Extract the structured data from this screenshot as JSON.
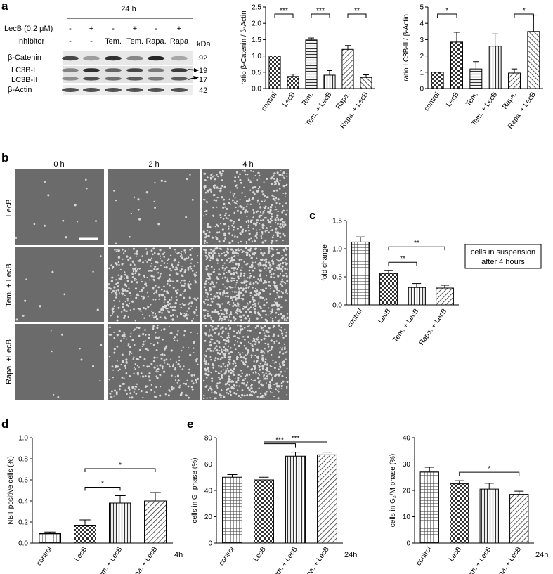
{
  "panels": {
    "a": {
      "letter": "a",
      "blot": {
        "time": "24 h",
        "row_labels": [
          "LecB (0.2 μM)",
          "Inhibitor"
        ],
        "lecb_values": [
          "-",
          "+",
          "-",
          "+",
          "-",
          "+"
        ],
        "inhibitor_values": [
          "-",
          "-",
          "Tem.",
          "Tem.",
          "Rapa.",
          "Rapa"
        ],
        "protein_labels": [
          "β-Catenin",
          "LC3B-I",
          "LC3B-II",
          "β-Actin"
        ],
        "kda_header": "kDa",
        "kda": [
          "92",
          "19",
          "17",
          "42"
        ]
      }
    },
    "b": {
      "letter": "b",
      "columns": [
        "0 h",
        "2 h",
        "4 h"
      ],
      "rows": [
        "LecB",
        "Tem. + LecB",
        "Rapa. +LecB"
      ]
    },
    "c": {
      "letter": "c",
      "box_text": [
        "cells in suspension",
        "after 4 hours"
      ]
    },
    "d": {
      "letter": "d"
    },
    "e": {
      "letter": "e"
    }
  },
  "chart_data": [
    {
      "id": "a1",
      "type": "bar",
      "categories": [
        "control",
        "LecB",
        "Tem.",
        "Tem. + LecB",
        "Rapa.",
        "Rapa. + LecB"
      ],
      "values": [
        1.0,
        0.37,
        1.49,
        0.41,
        1.2,
        0.34
      ],
      "errors": [
        0.0,
        0.07,
        0.06,
        0.14,
        0.12,
        0.08
      ],
      "ylabel": "ratio β-Catenin / β-Actin",
      "ylim": [
        0,
        2.5
      ],
      "yticks": [
        "0.0",
        "0.5",
        "1.0",
        "1.5",
        "2.0",
        "2.5"
      ],
      "sig": [
        {
          "from": 0,
          "to": 1,
          "label": "***"
        },
        {
          "from": 2,
          "to": 3,
          "label": "***"
        },
        {
          "from": 4,
          "to": 5,
          "label": "**"
        }
      ]
    },
    {
      "id": "a2",
      "type": "bar",
      "categories": [
        "control",
        "LecB",
        "Tem.",
        "Tem. + LecB",
        "Rapa.",
        "Rapa. + LecB"
      ],
      "values": [
        1.0,
        2.85,
        1.2,
        2.6,
        0.95,
        3.5
      ],
      "errors": [
        0.0,
        0.6,
        0.45,
        0.75,
        0.25,
        1.0
      ],
      "ylabel": "ratio LC3B-II / β-Actin",
      "ylim": [
        0,
        5
      ],
      "yticks": [
        "0",
        "1",
        "2",
        "3",
        "4",
        "5"
      ],
      "sig": [
        {
          "from": 0,
          "to": 1,
          "label": "*"
        },
        {
          "from": 4,
          "to": 5,
          "label": "*"
        }
      ]
    },
    {
      "id": "c",
      "type": "bar",
      "categories": [
        "control",
        "LecB",
        "Tem. + LecB",
        "Rapa. + LecB"
      ],
      "values": [
        1.12,
        0.56,
        0.31,
        0.3
      ],
      "errors": [
        0.09,
        0.05,
        0.07,
        0.05
      ],
      "ylabel": "fold change",
      "ylim": [
        0,
        1.5
      ],
      "yticks": [
        "0.0",
        "0.5",
        "1.0",
        "1.5"
      ],
      "sig": [
        {
          "from": 1,
          "to": 2,
          "label": "**"
        },
        {
          "from": 1,
          "to": 3,
          "label": "**"
        }
      ]
    },
    {
      "id": "d",
      "type": "bar",
      "categories": [
        "control",
        "LecB",
        "Tem. + LecB",
        "Rapa. + LecB"
      ],
      "values": [
        0.09,
        0.17,
        0.38,
        0.4
      ],
      "errors": [
        0.015,
        0.05,
        0.07,
        0.08
      ],
      "ylabel": "NBT positive cells (%)",
      "ylim": [
        0,
        1.0
      ],
      "yticks": [
        "0.0",
        "0.2",
        "0.4",
        "0.6",
        "0.8",
        "1.0"
      ],
      "sig": [
        {
          "from": 1,
          "to": 2,
          "label": "*"
        },
        {
          "from": 1,
          "to": 3,
          "label": "*"
        }
      ],
      "note": "4h"
    },
    {
      "id": "e1",
      "type": "bar",
      "categories": [
        "control",
        "LecB",
        "Tem. + LecB",
        "Rapa. + LecB"
      ],
      "values": [
        50,
        48,
        66,
        67
      ],
      "errors": [
        2,
        2,
        3,
        2
      ],
      "ylabel": "cells in G₁ phase (%)",
      "ylim": [
        0,
        80
      ],
      "yticks": [
        "0",
        "20",
        "40",
        "60",
        "80"
      ],
      "sig": [
        {
          "from": 1,
          "to": 2,
          "label": "***"
        },
        {
          "from": 1,
          "to": 3,
          "label": "***"
        }
      ],
      "note": "24h"
    },
    {
      "id": "e2",
      "type": "bar",
      "categories": [
        "control",
        "LecB",
        "Tem. + LecB",
        "Rapa. + LecB"
      ],
      "values": [
        27,
        22.5,
        20.5,
        18.5
      ],
      "errors": [
        1.8,
        1.2,
        2.2,
        1.2
      ],
      "ylabel": "cells in G₂/M phase (%)",
      "ylim": [
        0,
        40
      ],
      "yticks": [
        "0",
        "10",
        "20",
        "30",
        "40"
      ],
      "sig": [
        {
          "from": 1,
          "to": 3,
          "label": "*"
        }
      ],
      "note": "24h"
    }
  ]
}
